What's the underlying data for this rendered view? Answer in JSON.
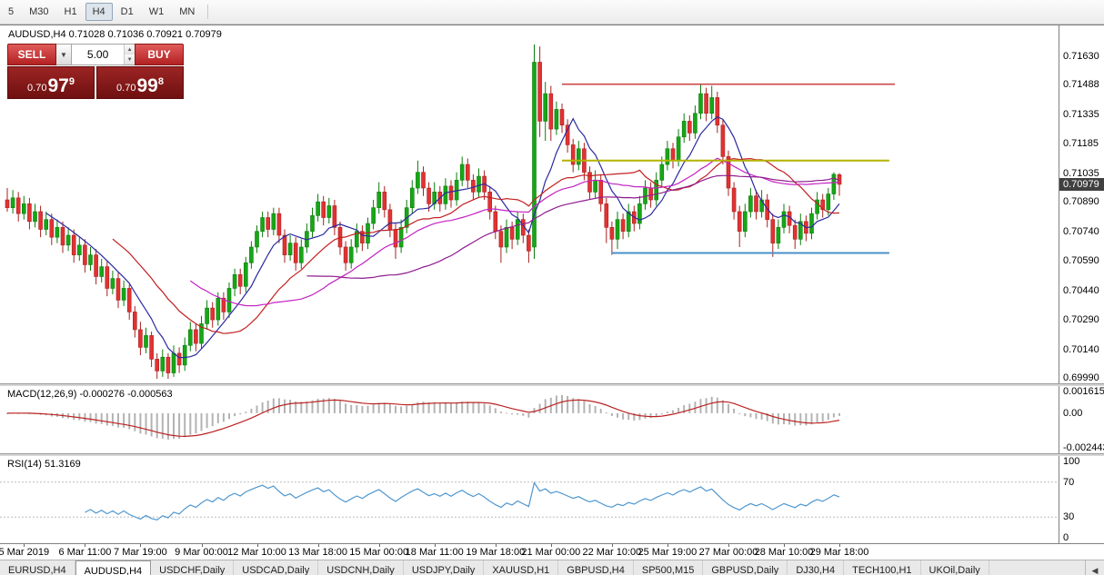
{
  "toolbar": {
    "timeframes": [
      {
        "label": "5",
        "active": false
      },
      {
        "label": "M30",
        "active": false
      },
      {
        "label": "H1",
        "active": false
      },
      {
        "label": "H4",
        "active": true
      },
      {
        "label": "D1",
        "active": false
      },
      {
        "label": "W1",
        "active": false
      },
      {
        "label": "MN",
        "active": false
      }
    ]
  },
  "chart": {
    "title_symbol": "AUDUSD,H4",
    "title_ohlc": "0.71028 0.71036 0.70921 0.70979",
    "price_badge": "0.70979",
    "one_click": {
      "sell_label": "SELL",
      "buy_label": "BUY",
      "volume": "5.00",
      "dropdown_icon": "▼",
      "spin_up_icon": "▲",
      "spin_down_icon": "▼",
      "sell_price_prefix": "0.70",
      "sell_price_big": "97",
      "sell_price_sup": "9",
      "buy_price_prefix": "0.70",
      "buy_price_big": "99",
      "buy_price_sup": "8"
    }
  },
  "macd_panel": {
    "label": "MACD(12,26,9)",
    "values": "-0.000276 -0.000563"
  },
  "rsi_panel": {
    "label": "RSI(14)",
    "value": "51.3169"
  },
  "tabs": {
    "scroll_left_icon": "◀",
    "items": [
      {
        "label": "EURUSD,H4",
        "active": false
      },
      {
        "label": "AUDUSD,H4",
        "active": true
      },
      {
        "label": "USDCHF,Daily",
        "active": false
      },
      {
        "label": "USDCAD,Daily",
        "active": false
      },
      {
        "label": "USDCNH,Daily",
        "active": false
      },
      {
        "label": "USDJPY,Daily",
        "active": false
      },
      {
        "label": "XAUUSD,H1",
        "active": false
      },
      {
        "label": "GBPUSD,H4",
        "active": false
      },
      {
        "label": "SP500,M15",
        "active": false
      },
      {
        "label": "GBPUSD,Daily",
        "active": false
      },
      {
        "label": "DJ30,H4",
        "active": false
      },
      {
        "label": "TECH100,H1",
        "active": false
      },
      {
        "label": "UKOil,Daily",
        "active": false
      }
    ]
  },
  "chart_data": {
    "type": "candlestick",
    "symbol": "AUDUSD",
    "timeframe": "H4",
    "title": "AUDUSD,H4 0.71028 0.71036 0.70921 0.70979",
    "price_axis": {
      "min": 0.69967,
      "max": 0.71787,
      "ticks": [
        "0.71630",
        "0.71488",
        "0.71335",
        "0.71185",
        "0.71035",
        "0.70890",
        "0.70740",
        "0.70590",
        "0.70440",
        "0.70290",
        "0.70140",
        "0.69990"
      ]
    },
    "colors": {
      "up": "#17a617",
      "up_stroke": "#0b7d0b",
      "down": "#e23232",
      "down_stroke": "#a92020"
    },
    "time_labels": [
      {
        "index": 3,
        "label": "5 Mar 2019"
      },
      {
        "index": 14,
        "label": "6 Mar 11:00"
      },
      {
        "index": 24,
        "label": "7 Mar 19:00"
      },
      {
        "index": 35,
        "label": "9 Mar 00:00"
      },
      {
        "index": 45,
        "label": "12 Mar 10:00"
      },
      {
        "index": 56,
        "label": "13 Mar 18:00"
      },
      {
        "index": 67,
        "label": "15 Mar 00:00"
      },
      {
        "index": 77,
        "label": "18 Mar 11:00"
      },
      {
        "index": 88,
        "label": "19 Mar 18:00"
      },
      {
        "index": 98,
        "label": "21 Mar 00:00"
      },
      {
        "index": 109,
        "label": "22 Mar 10:00"
      },
      {
        "index": 119,
        "label": "25 Mar 19:00"
      },
      {
        "index": 130,
        "label": "27 Mar 00:00"
      },
      {
        "index": 140,
        "label": "28 Mar 10:00"
      },
      {
        "index": 150,
        "label": "29 Mar 18:00"
      }
    ],
    "moving_averages": [
      {
        "period": 8,
        "color": "#2a2aa0"
      },
      {
        "period": 20,
        "color": "#c22020"
      },
      {
        "period": 34,
        "color": "#c322c3"
      },
      {
        "period": 55,
        "color": "#8f1b8f"
      }
    ],
    "hlines": [
      {
        "price": 0.71488,
        "from_index": 100,
        "to_index": 160,
        "color": "#cc4848",
        "width": 1.6
      },
      {
        "price": 0.711,
        "from_index": 100,
        "to_index": 159,
        "color": "#b2b200",
        "width": 2
      },
      {
        "price": 0.7063,
        "from_index": 109,
        "to_index": 159,
        "color": "#4a90c8",
        "width": 2
      }
    ],
    "macd": {
      "fast": 12,
      "slow": 26,
      "signal": 9,
      "hist_color": "#b3b3b3",
      "signal_color": "#bb2222",
      "current_values": [
        -0.000276,
        -0.000563
      ],
      "range": {
        "min": -0.0028,
        "max": 0.0019
      },
      "ticks": [
        {
          "value": 0.001615,
          "label": "0.001615"
        },
        {
          "value": 0,
          "label": "0.00"
        },
        {
          "value": -0.002443,
          "label": "-0.002443"
        }
      ]
    },
    "rsi": {
      "period": 14,
      "color": "#4f97d0",
      "levels": [
        70,
        30
      ],
      "current_value": 51.3169,
      "range": {
        "min": 0,
        "max": 100
      },
      "ticks": [
        {
          "value": 100,
          "label": "100"
        },
        {
          "value": 70,
          "label": "70"
        },
        {
          "value": 30,
          "label": "30"
        },
        {
          "value": 0,
          "label": "0"
        }
      ]
    },
    "candles": [
      [
        0.709,
        0.7096,
        0.7084,
        0.7086
      ],
      [
        0.7086,
        0.7095,
        0.7083,
        0.7091
      ],
      [
        0.7091,
        0.7094,
        0.7079,
        0.7083
      ],
      [
        0.7083,
        0.7092,
        0.708,
        0.7088
      ],
      [
        0.7088,
        0.7091,
        0.7075,
        0.7079
      ],
      [
        0.7079,
        0.7088,
        0.7076,
        0.7084
      ],
      [
        0.7084,
        0.7087,
        0.7071,
        0.7075
      ],
      [
        0.7075,
        0.7084,
        0.7072,
        0.708
      ],
      [
        0.708,
        0.7083,
        0.7067,
        0.7071
      ],
      [
        0.7071,
        0.708,
        0.7068,
        0.7076
      ],
      [
        0.7076,
        0.7079,
        0.7063,
        0.7067
      ],
      [
        0.7067,
        0.7076,
        0.7064,
        0.7072
      ],
      [
        0.7072,
        0.7075,
        0.7058,
        0.7062
      ],
      [
        0.7062,
        0.7071,
        0.7059,
        0.7067
      ],
      [
        0.7067,
        0.707,
        0.7053,
        0.7057
      ],
      [
        0.7057,
        0.7066,
        0.7054,
        0.7062
      ],
      [
        0.7062,
        0.7065,
        0.7047,
        0.7051
      ],
      [
        0.7051,
        0.706,
        0.7048,
        0.7056
      ],
      [
        0.7056,
        0.7059,
        0.7041,
        0.7045
      ],
      [
        0.7045,
        0.7054,
        0.7042,
        0.705
      ],
      [
        0.705,
        0.7053,
        0.7035,
        0.7039
      ],
      [
        0.7039,
        0.7049,
        0.7036,
        0.7045
      ],
      [
        0.7045,
        0.7047,
        0.7029,
        0.7033
      ],
      [
        0.7033,
        0.7036,
        0.702,
        0.7024
      ],
      [
        0.7024,
        0.7028,
        0.7011,
        0.7015
      ],
      [
        0.7015,
        0.7025,
        0.7012,
        0.7021
      ],
      [
        0.7021,
        0.7023,
        0.7005,
        0.7009
      ],
      [
        0.7009,
        0.7012,
        0.6999,
        0.7003
      ],
      [
        0.7003,
        0.7014,
        0.7,
        0.701
      ],
      [
        0.701,
        0.7012,
        0.6999,
        0.7002
      ],
      [
        0.7002,
        0.7016,
        0.7,
        0.7012
      ],
      [
        0.7012,
        0.7015,
        0.7002,
        0.7006
      ],
      [
        0.7006,
        0.702,
        0.7003,
        0.7016
      ],
      [
        0.7016,
        0.7028,
        0.7013,
        0.7024
      ],
      [
        0.7024,
        0.7027,
        0.7013,
        0.7017
      ],
      [
        0.7017,
        0.7031,
        0.7014,
        0.7027
      ],
      [
        0.7027,
        0.7039,
        0.7024,
        0.7035
      ],
      [
        0.7035,
        0.7038,
        0.7025,
        0.7029
      ],
      [
        0.7029,
        0.7043,
        0.7026,
        0.704
      ],
      [
        0.704,
        0.7043,
        0.7029,
        0.7033
      ],
      [
        0.7033,
        0.7048,
        0.703,
        0.7045
      ],
      [
        0.7045,
        0.7055,
        0.7041,
        0.7052
      ],
      [
        0.7052,
        0.7055,
        0.7042,
        0.7046
      ],
      [
        0.7046,
        0.7061,
        0.7043,
        0.7058
      ],
      [
        0.7058,
        0.7069,
        0.7055,
        0.7066
      ],
      [
        0.7066,
        0.7077,
        0.7063,
        0.7074
      ],
      [
        0.7074,
        0.7084,
        0.7071,
        0.7081
      ],
      [
        0.7081,
        0.7084,
        0.7071,
        0.7075
      ],
      [
        0.7075,
        0.7086,
        0.7072,
        0.7083
      ],
      [
        0.7083,
        0.7086,
        0.7068,
        0.7072
      ],
      [
        0.7072,
        0.7075,
        0.7058,
        0.7062
      ],
      [
        0.7062,
        0.7072,
        0.7059,
        0.7068
      ],
      [
        0.7068,
        0.7071,
        0.7054,
        0.7058
      ],
      [
        0.7058,
        0.707,
        0.7055,
        0.7066
      ],
      [
        0.7066,
        0.7078,
        0.7063,
        0.7074
      ],
      [
        0.7074,
        0.7086,
        0.7071,
        0.7082
      ],
      [
        0.7082,
        0.7093,
        0.7079,
        0.7089
      ],
      [
        0.7089,
        0.7092,
        0.7077,
        0.7081
      ],
      [
        0.7081,
        0.7091,
        0.7078,
        0.7087
      ],
      [
        0.7087,
        0.709,
        0.7072,
        0.7076
      ],
      [
        0.7076,
        0.7079,
        0.7062,
        0.7066
      ],
      [
        0.7066,
        0.7069,
        0.7054,
        0.7058
      ],
      [
        0.7058,
        0.707,
        0.7055,
        0.7066
      ],
      [
        0.7066,
        0.7078,
        0.7063,
        0.7074
      ],
      [
        0.7074,
        0.7077,
        0.7064,
        0.7068
      ],
      [
        0.7068,
        0.7081,
        0.7065,
        0.7078
      ],
      [
        0.7078,
        0.709,
        0.7075,
        0.7086
      ],
      [
        0.7086,
        0.7099,
        0.7083,
        0.7094
      ],
      [
        0.7094,
        0.7097,
        0.7081,
        0.7085
      ],
      [
        0.7085,
        0.7088,
        0.7071,
        0.7075
      ],
      [
        0.7075,
        0.7078,
        0.706,
        0.7066
      ],
      [
        0.7066,
        0.708,
        0.7063,
        0.7076
      ],
      [
        0.7076,
        0.709,
        0.7073,
        0.7086
      ],
      [
        0.7086,
        0.71,
        0.7083,
        0.7096
      ],
      [
        0.7096,
        0.711,
        0.7093,
        0.7104
      ],
      [
        0.7104,
        0.7107,
        0.7092,
        0.7096
      ],
      [
        0.7096,
        0.7099,
        0.7084,
        0.7088
      ],
      [
        0.7088,
        0.7099,
        0.7085,
        0.7094
      ],
      [
        0.7094,
        0.7097,
        0.7084,
        0.7088
      ],
      [
        0.7088,
        0.7101,
        0.7085,
        0.7097
      ],
      [
        0.7097,
        0.71,
        0.7086,
        0.709
      ],
      [
        0.709,
        0.7104,
        0.7087,
        0.71
      ],
      [
        0.71,
        0.7112,
        0.7097,
        0.7108
      ],
      [
        0.7108,
        0.7111,
        0.7096,
        0.71
      ],
      [
        0.71,
        0.7103,
        0.709,
        0.7094
      ],
      [
        0.7094,
        0.7106,
        0.7091,
        0.7102
      ],
      [
        0.7102,
        0.7105,
        0.709,
        0.7094
      ],
      [
        0.7094,
        0.7097,
        0.708,
        0.7084
      ],
      [
        0.7084,
        0.7087,
        0.707,
        0.7074
      ],
      [
        0.7074,
        0.7077,
        0.7058,
        0.7066
      ],
      [
        0.7066,
        0.708,
        0.7063,
        0.7076
      ],
      [
        0.7076,
        0.7079,
        0.7065,
        0.707
      ],
      [
        0.707,
        0.7084,
        0.7067,
        0.708
      ],
      [
        0.708,
        0.7083,
        0.7068,
        0.7072
      ],
      [
        0.7072,
        0.7075,
        0.7058,
        0.7064
      ],
      [
        0.7066,
        0.7169,
        0.706,
        0.716
      ],
      [
        0.716,
        0.7168,
        0.7122,
        0.713
      ],
      [
        0.713,
        0.715,
        0.712,
        0.7144
      ],
      [
        0.7144,
        0.7148,
        0.712,
        0.7126
      ],
      [
        0.7126,
        0.714,
        0.7123,
        0.7136
      ],
      [
        0.7136,
        0.7139,
        0.7124,
        0.7128
      ],
      [
        0.7128,
        0.7131,
        0.7114,
        0.7118
      ],
      [
        0.7118,
        0.7121,
        0.7104,
        0.7108
      ],
      [
        0.7108,
        0.712,
        0.7105,
        0.7116
      ],
      [
        0.7116,
        0.7119,
        0.71,
        0.7104
      ],
      [
        0.7104,
        0.7107,
        0.709,
        0.7094
      ],
      [
        0.7094,
        0.7105,
        0.7091,
        0.71
      ],
      [
        0.71,
        0.7103,
        0.7084,
        0.7088
      ],
      [
        0.7088,
        0.7091,
        0.7068,
        0.7076
      ],
      [
        0.7076,
        0.7079,
        0.7062,
        0.707
      ],
      [
        0.707,
        0.7084,
        0.7065,
        0.708
      ],
      [
        0.708,
        0.7083,
        0.707,
        0.7074
      ],
      [
        0.7074,
        0.7088,
        0.7071,
        0.7084
      ],
      [
        0.7084,
        0.7087,
        0.7074,
        0.7078
      ],
      [
        0.7078,
        0.7092,
        0.7075,
        0.7088
      ],
      [
        0.7088,
        0.71,
        0.7085,
        0.7096
      ],
      [
        0.7096,
        0.7099,
        0.7086,
        0.709
      ],
      [
        0.709,
        0.7104,
        0.7087,
        0.71
      ],
      [
        0.71,
        0.7112,
        0.7097,
        0.7108
      ],
      [
        0.7108,
        0.712,
        0.7105,
        0.7116
      ],
      [
        0.7116,
        0.7119,
        0.7106,
        0.711
      ],
      [
        0.711,
        0.7126,
        0.7107,
        0.7122
      ],
      [
        0.7122,
        0.7134,
        0.7119,
        0.713
      ],
      [
        0.713,
        0.7133,
        0.712,
        0.7124
      ],
      [
        0.7124,
        0.7138,
        0.7121,
        0.7134
      ],
      [
        0.7134,
        0.7149,
        0.7131,
        0.7144
      ],
      [
        0.7144,
        0.7147,
        0.713,
        0.7134
      ],
      [
        0.7134,
        0.7148,
        0.7131,
        0.7142
      ],
      [
        0.7142,
        0.7145,
        0.7124,
        0.7128
      ],
      [
        0.7128,
        0.7131,
        0.7108,
        0.7112
      ],
      [
        0.7112,
        0.7115,
        0.7092,
        0.7096
      ],
      [
        0.7096,
        0.7099,
        0.708,
        0.7084
      ],
      [
        0.7084,
        0.7087,
        0.7066,
        0.7074
      ],
      [
        0.7074,
        0.7088,
        0.7071,
        0.7084
      ],
      [
        0.7084,
        0.7096,
        0.7081,
        0.7092
      ],
      [
        0.7092,
        0.7095,
        0.708,
        0.7084
      ],
      [
        0.7084,
        0.7095,
        0.7081,
        0.709
      ],
      [
        0.709,
        0.7093,
        0.7076,
        0.708
      ],
      [
        0.708,
        0.7083,
        0.7061,
        0.7068
      ],
      [
        0.7068,
        0.708,
        0.7065,
        0.7076
      ],
      [
        0.7076,
        0.7088,
        0.7073,
        0.7084
      ],
      [
        0.7084,
        0.7087,
        0.7073,
        0.7077
      ],
      [
        0.7077,
        0.708,
        0.7065,
        0.707
      ],
      [
        0.707,
        0.7083,
        0.7067,
        0.7079
      ],
      [
        0.7079,
        0.7082,
        0.7069,
        0.7073
      ],
      [
        0.7073,
        0.7086,
        0.707,
        0.7083
      ],
      [
        0.7083,
        0.7094,
        0.708,
        0.709
      ],
      [
        0.709,
        0.7093,
        0.7081,
        0.7085
      ],
      [
        0.7085,
        0.7096,
        0.7082,
        0.7093
      ],
      [
        0.7093,
        0.7104,
        0.709,
        0.7103
      ],
      [
        0.71028,
        0.71036,
        0.70921,
        0.70979
      ]
    ]
  }
}
